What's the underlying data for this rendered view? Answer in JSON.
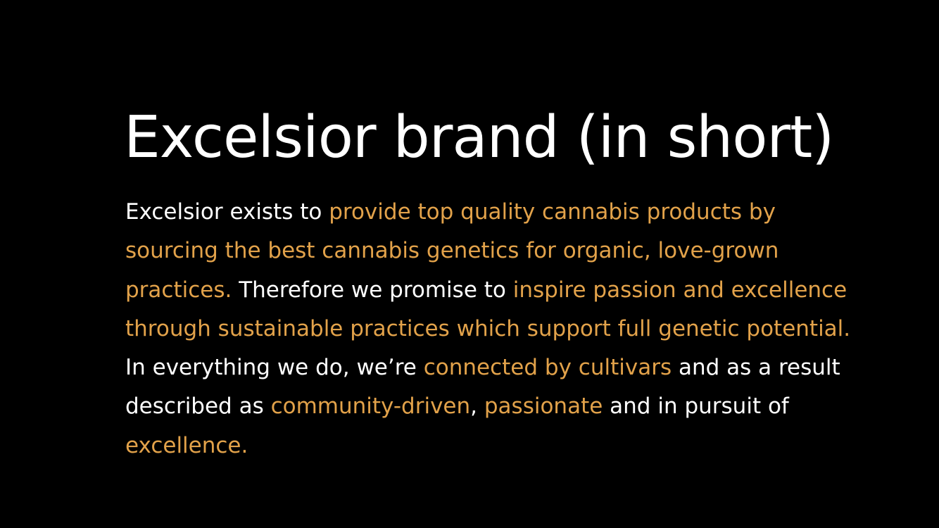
{
  "slide": {
    "title": "Excelsior brand (in short)",
    "body_lines": [
      [
        {
          "text": "Excelsior exists to ",
          "highlight": false
        },
        {
          "text": "provide top quality cannabis products by",
          "highlight": true
        }
      ],
      [
        {
          "text": "sourcing the best cannabis genetics for organic, love-grown",
          "highlight": true
        }
      ],
      [
        {
          "text": "practices.",
          "highlight": true
        },
        {
          "text": " Therefore we promise to ",
          "highlight": false
        },
        {
          "text": "inspire passion and excellence",
          "highlight": true
        }
      ],
      [
        {
          "text": "through sustainable practices which support full genetic potential.",
          "highlight": true
        }
      ],
      [
        {
          "text": "In everything we do, we’re ",
          "highlight": false
        },
        {
          "text": "connected by cultivars",
          "highlight": true
        },
        {
          "text": " and as a result",
          "highlight": false
        }
      ],
      [
        {
          "text": "described as ",
          "highlight": false
        },
        {
          "text": "community-driven",
          "highlight": true
        },
        {
          "text": ", ",
          "highlight": false
        },
        {
          "text": "passionate",
          "highlight": true
        },
        {
          "text": " and in pursuit of",
          "highlight": false
        }
      ],
      [
        {
          "text": "excellence.",
          "highlight": true
        }
      ]
    ]
  },
  "colors": {
    "background": "#000000",
    "text": "#ffffff",
    "accent": "#e2a24a"
  }
}
